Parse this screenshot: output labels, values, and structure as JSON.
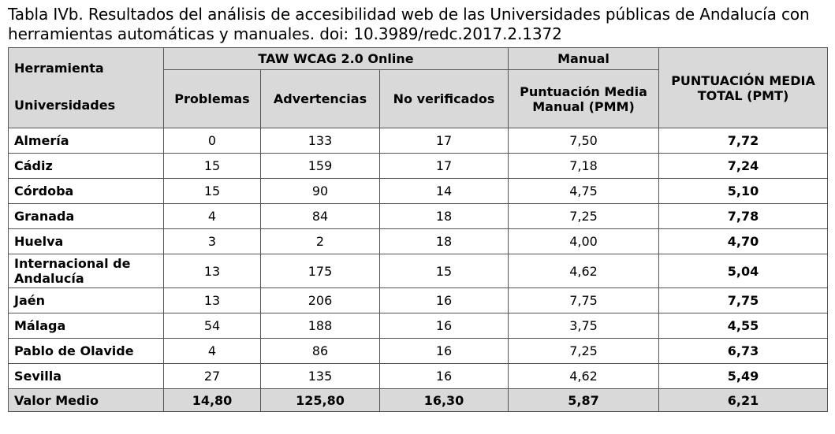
{
  "caption": "Tabla IVb. Resultados del análisis de accesibilidad web de las Universidades públicas de Andalucía con herramientas automáticas y manuales. doi: 10.3989/redc.2017.2.1372",
  "headers": {
    "herramienta": "Herramienta",
    "universidades": "Universidades",
    "taw": "TAW WCAG 2.0 Online",
    "manual": "Manual",
    "problemas": "Problemas",
    "advertencias": "Advertencias",
    "no_verificados": "No verificados",
    "pmm": "Puntuación Media Manual (PMM)",
    "pmt": "PUNTUACIÓN MEDIA TOTAL (PMT)"
  },
  "rows": [
    {
      "uni": "Almería",
      "problemas": "0",
      "advertencias": "133",
      "no_verificados": "17",
      "pmm": "7,50",
      "pmt": "7,72"
    },
    {
      "uni": "Cádiz",
      "problemas": "15",
      "advertencias": "159",
      "no_verificados": "17",
      "pmm": "7,18",
      "pmt": "7,24"
    },
    {
      "uni": "Córdoba",
      "problemas": "15",
      "advertencias": "90",
      "no_verificados": "14",
      "pmm": "4,75",
      "pmt": "5,10"
    },
    {
      "uni": "Granada",
      "problemas": "4",
      "advertencias": "84",
      "no_verificados": "18",
      "pmm": "7,25",
      "pmt": "7,78"
    },
    {
      "uni": "Huelva",
      "problemas": "3",
      "advertencias": "2",
      "no_verificados": "18",
      "pmm": "4,00",
      "pmt": "4,70"
    },
    {
      "uni": "Internacional de Andalucía",
      "problemas": "13",
      "advertencias": "175",
      "no_verificados": "15",
      "pmm": "4,62",
      "pmt": "5,04"
    },
    {
      "uni": "Jaén",
      "problemas": "13",
      "advertencias": "206",
      "no_verificados": "16",
      "pmm": "7,75",
      "pmt": "7,75"
    },
    {
      "uni": "Málaga",
      "problemas": "54",
      "advertencias": "188",
      "no_verificados": "16",
      "pmm": "3,75",
      "pmt": "4,55"
    },
    {
      "uni": "Pablo de Olavide",
      "problemas": "4",
      "advertencias": "86",
      "no_verificados": "16",
      "pmm": "7,25",
      "pmt": "6,73"
    },
    {
      "uni": "Sevilla",
      "problemas": "27",
      "advertencias": "135",
      "no_verificados": "16",
      "pmm": "4,62",
      "pmt": "5,49"
    }
  ],
  "footer": {
    "uni": "Valor Medio",
    "problemas": "14,80",
    "advertencias": "125,80",
    "no_verificados": "16,30",
    "pmm": "5,87",
    "pmt": "6,21"
  }
}
